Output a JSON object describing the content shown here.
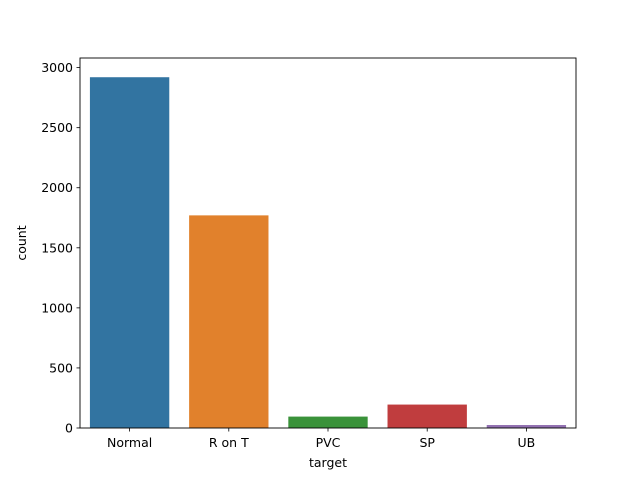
{
  "chart_data": {
    "type": "bar",
    "title": "",
    "xlabel": "target",
    "ylabel": "count",
    "categories": [
      "Normal",
      "R on T",
      "PVC",
      "SP",
      "UB"
    ],
    "values": [
      2920,
      1770,
      95,
      195,
      25
    ],
    "ylim": [
      0,
      3080
    ],
    "yticks": [
      0,
      500,
      1000,
      1500,
      2000,
      2500,
      3000
    ],
    "ytick_labels": [
      "0",
      "500",
      "1000",
      "1500",
      "2000",
      "2500",
      "3000"
    ],
    "colors": [
      "#3274a1",
      "#e1812c",
      "#3a923a",
      "#c03d3e",
      "#9372b2"
    ],
    "grid": false,
    "legend": "none"
  }
}
